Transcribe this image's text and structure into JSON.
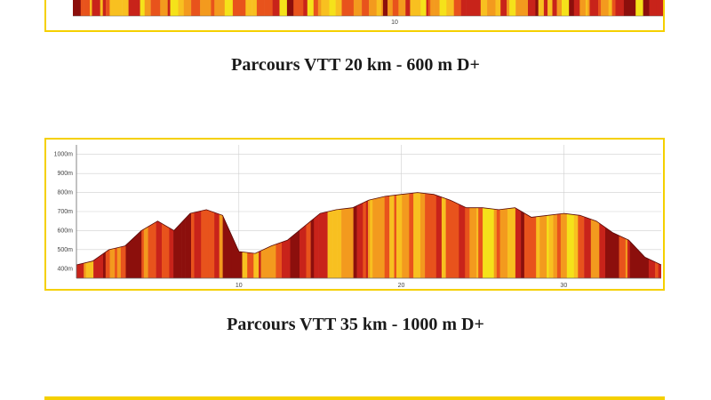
{
  "captions": {
    "first": "Parcours VTT 20 km - 600 m D+",
    "second": "Parcours VTT 35 km - 1000 m D+"
  },
  "colors": {
    "frame": "#f5d000",
    "slope_palette": [
      "#f5e21a",
      "#f8c020",
      "#f39a1e",
      "#e8531c",
      "#c8231a",
      "#8c0f0c"
    ],
    "grid": "#cfcfcf",
    "axis": "#666666"
  },
  "chart_data": [
    {
      "type": "area",
      "x_ticks_visible": [
        "10"
      ],
      "xlim": [
        0,
        20
      ],
      "note_visible_part": "only bottom strip of the profile is visible"
    },
    {
      "type": "area",
      "xlabel": "",
      "ylabel": "",
      "x_ticks": [
        "10",
        "20",
        "30"
      ],
      "y_ticks": [
        "400m",
        "500m",
        "600m",
        "700m",
        "800m",
        "900m",
        "1000m"
      ],
      "xlim": [
        0,
        36
      ],
      "ylim": [
        350,
        1050
      ],
      "grid": true,
      "x": [
        0,
        1,
        2,
        3,
        4,
        5,
        6,
        7,
        8,
        9,
        10,
        11,
        12,
        13,
        14,
        15,
        16,
        17,
        18,
        19,
        20,
        21,
        22,
        23,
        24,
        25,
        26,
        27,
        28,
        29,
        30,
        31,
        32,
        33,
        34,
        35,
        36
      ],
      "y": [
        420,
        440,
        500,
        520,
        600,
        650,
        600,
        690,
        710,
        680,
        490,
        480,
        520,
        550,
        620,
        690,
        710,
        720,
        760,
        780,
        790,
        800,
        790,
        760,
        720,
        720,
        710,
        720,
        670,
        680,
        690,
        680,
        650,
        590,
        550,
        460,
        420
      ]
    }
  ]
}
